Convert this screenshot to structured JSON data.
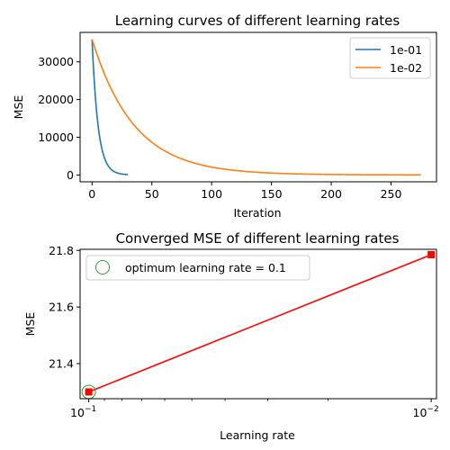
{
  "chart_data": [
    {
      "type": "line",
      "title": "Learning curves of different learning rates",
      "xlabel": "Iteration",
      "ylabel": "MSE",
      "xlim": [
        -10,
        288
      ],
      "ylim": [
        -1800,
        37800
      ],
      "xticks": [
        0,
        50,
        100,
        150,
        200,
        250
      ],
      "yticks": [
        0,
        10000,
        20000,
        30000
      ],
      "grid": false,
      "legend_position": "upper right",
      "series": [
        {
          "name": "1e-01",
          "color": "#1f77b4",
          "x0": 0,
          "x1": 30,
          "y0": 36000,
          "yinf": 21.3,
          "decay": 0.2
        },
        {
          "name": "1e-02",
          "color": "#ff7f0e",
          "x0": 0,
          "x1": 275,
          "y0": 36000,
          "yinf": 21.78,
          "decay": 0.0285
        }
      ]
    },
    {
      "type": "line",
      "title": "Converged MSE of different learning rates",
      "xlabel": "Learning rate",
      "ylabel": "MSE",
      "x_scale": "log",
      "x_inverted": true,
      "xlim": [
        0.106,
        0.00965
      ],
      "ylim": [
        21.276,
        21.804
      ],
      "xticks": [
        {
          "value": 0.1,
          "base": "10",
          "exp": "−1"
        },
        {
          "value": 0.01,
          "base": "10",
          "exp": "−2"
        }
      ],
      "yticks": [
        21.4,
        21.6,
        21.8
      ],
      "grid": false,
      "legend_position": "upper left",
      "series": [
        {
          "color": "#ff0000",
          "marker": "square",
          "x": [
            0.1,
            0.01
          ],
          "y": [
            21.3,
            21.785
          ]
        }
      ],
      "annotation": {
        "label": "optimum learning rate = 0.1",
        "x": 0.1,
        "y": 21.3,
        "color": "#2ca02c",
        "marker": "circle-open"
      }
    }
  ]
}
